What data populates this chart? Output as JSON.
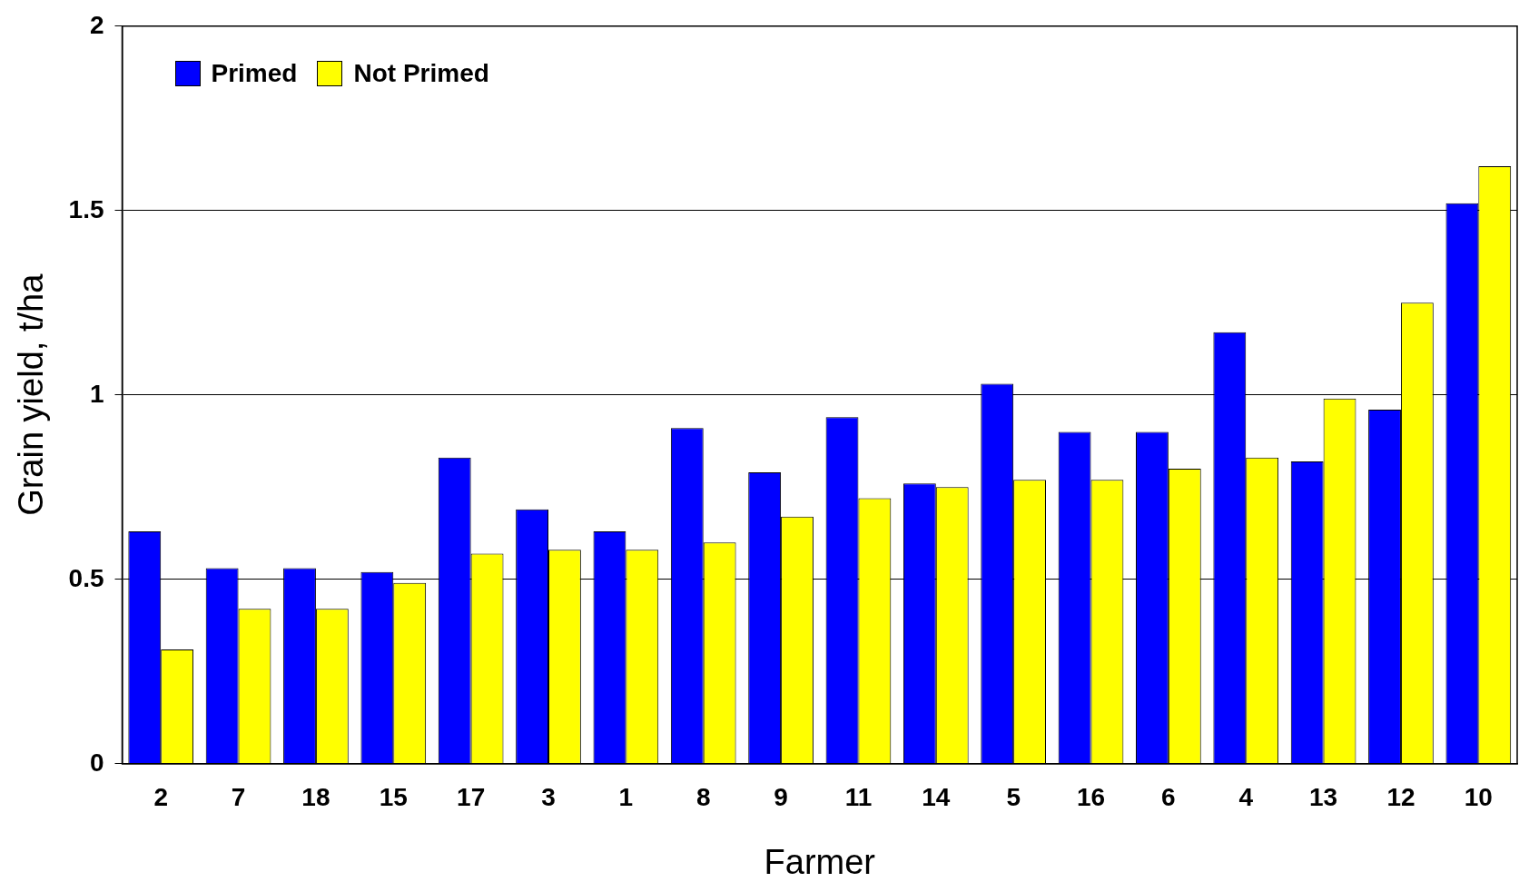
{
  "chart_data": {
    "type": "bar",
    "xlabel": "Farmer",
    "ylabel": "Grain yield, t/ha",
    "categories": [
      "2",
      "7",
      "18",
      "15",
      "17",
      "3",
      "1",
      "8",
      "9",
      "11",
      "14",
      "5",
      "16",
      "6",
      "4",
      "13",
      "12",
      "10"
    ],
    "series": [
      {
        "name": "Primed",
        "color": "#0000ff",
        "values": [
          0.63,
          0.53,
          0.53,
          0.52,
          0.83,
          0.69,
          0.63,
          0.91,
          0.79,
          0.94,
          0.76,
          1.03,
          0.9,
          0.9,
          1.17,
          0.82,
          0.96,
          1.52
        ]
      },
      {
        "name": "Not Primed",
        "color": "#ffff00",
        "values": [
          0.31,
          0.42,
          0.42,
          0.49,
          0.57,
          0.58,
          0.58,
          0.6,
          0.67,
          0.72,
          0.75,
          0.77,
          0.77,
          0.8,
          0.83,
          0.99,
          1.25,
          1.62
        ]
      }
    ],
    "ylim": [
      0,
      2
    ],
    "yticks": [
      0,
      0.5,
      1,
      1.5,
      2
    ],
    "grid": "y",
    "legend": "top left"
  }
}
